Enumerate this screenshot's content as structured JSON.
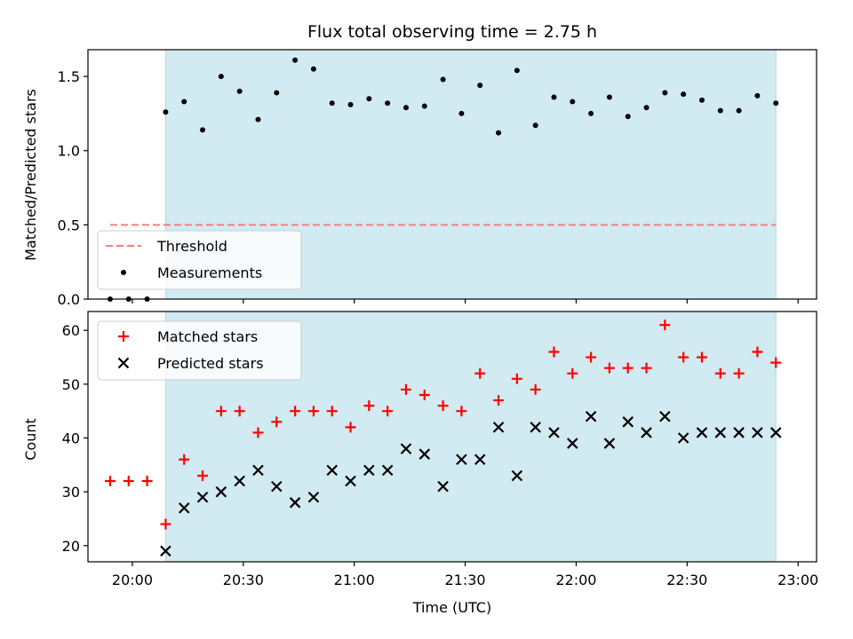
{
  "title": "Flux total observing time = 2.75 h",
  "colors": {
    "shade": "#add8e6",
    "threshold": "#f08080",
    "measurement": "#000000",
    "matched": "#ff0000",
    "predicted": "#000000"
  },
  "chart_data": [
    {
      "type": "scatter",
      "ylabel": "Matched/Predicted stars",
      "xlabel": "",
      "xlim": [
        "19:48",
        "23:05"
      ],
      "ylim": [
        0,
        1.68
      ],
      "yticks": [
        0.0,
        0.5,
        1.0,
        1.5
      ],
      "ytick_labels": [
        "0.0",
        "0.5",
        "1.0",
        "1.5"
      ],
      "shaded_interval": [
        "20:09",
        "22:54"
      ],
      "legend": {
        "placement": "lower-left",
        "entries": [
          "Threshold",
          "Measurements"
        ]
      },
      "threshold": {
        "name": "Threshold",
        "style": "dashed",
        "value": 0.5,
        "x_range": [
          "19:54",
          "22:54"
        ]
      },
      "series": [
        {
          "name": "Measurements",
          "marker": "dot",
          "x": [
            "19:54",
            "19:59",
            "20:04",
            "20:09",
            "20:14",
            "20:19",
            "20:24",
            "20:29",
            "20:34",
            "20:39",
            "20:44",
            "20:49",
            "20:54",
            "20:59",
            "21:04",
            "21:09",
            "21:14",
            "21:19",
            "21:24",
            "21:29",
            "21:34",
            "21:39",
            "21:44",
            "21:49",
            "21:54",
            "21:59",
            "22:04",
            "22:09",
            "22:14",
            "22:19",
            "22:24",
            "22:29",
            "22:34",
            "22:39",
            "22:44",
            "22:49",
            "22:54"
          ],
          "y": [
            0.0,
            0.0,
            0.0,
            1.26,
            1.33,
            1.14,
            1.5,
            1.4,
            1.21,
            1.39,
            1.61,
            1.55,
            1.32,
            1.31,
            1.35,
            1.32,
            1.29,
            1.3,
            1.48,
            1.25,
            1.44,
            1.12,
            1.54,
            1.17,
            1.36,
            1.33,
            1.25,
            1.36,
            1.23,
            1.29,
            1.39,
            1.38,
            1.34,
            1.27,
            1.27,
            1.37,
            1.32
          ]
        }
      ]
    },
    {
      "type": "scatter",
      "ylabel": "Count",
      "xlabel": "Time (UTC)",
      "xlim": [
        "19:48",
        "23:05"
      ],
      "ylim": [
        17,
        63.5
      ],
      "xticks": [
        "20:00",
        "20:30",
        "21:00",
        "21:30",
        "22:00",
        "22:30",
        "23:00"
      ],
      "yticks": [
        20,
        30,
        40,
        50,
        60
      ],
      "ytick_labels": [
        "20",
        "30",
        "40",
        "50",
        "60"
      ],
      "shaded_interval": [
        "20:09",
        "22:54"
      ],
      "legend": {
        "placement": "upper-left",
        "entries": [
          "Matched stars",
          "Predicted stars"
        ]
      },
      "series": [
        {
          "name": "Matched stars",
          "marker": "plus",
          "x": [
            "19:54",
            "19:59",
            "20:04",
            "20:09",
            "20:14",
            "20:19",
            "20:24",
            "20:29",
            "20:34",
            "20:39",
            "20:44",
            "20:49",
            "20:54",
            "20:59",
            "21:04",
            "21:09",
            "21:14",
            "21:19",
            "21:24",
            "21:29",
            "21:34",
            "21:39",
            "21:44",
            "21:49",
            "21:54",
            "21:59",
            "22:04",
            "22:09",
            "22:14",
            "22:19",
            "22:24",
            "22:29",
            "22:34",
            "22:39",
            "22:44",
            "22:49",
            "22:54"
          ],
          "y": [
            32,
            32,
            32,
            24,
            36,
            33,
            45,
            45,
            41,
            43,
            45,
            45,
            45,
            42,
            46,
            45,
            49,
            48,
            46,
            45,
            52,
            47,
            51,
            49,
            56,
            52,
            55,
            53,
            53,
            53,
            61,
            55,
            55,
            52,
            52,
            56,
            54
          ]
        },
        {
          "name": "Predicted stars",
          "marker": "x",
          "x": [
            "20:09",
            "20:14",
            "20:19",
            "20:24",
            "20:29",
            "20:34",
            "20:39",
            "20:44",
            "20:49",
            "20:54",
            "20:59",
            "21:04",
            "21:09",
            "21:14",
            "21:19",
            "21:24",
            "21:29",
            "21:34",
            "21:39",
            "21:44",
            "21:49",
            "21:54",
            "21:59",
            "22:04",
            "22:09",
            "22:14",
            "22:19",
            "22:24",
            "22:29",
            "22:34",
            "22:39",
            "22:44",
            "22:49",
            "22:54"
          ],
          "y": [
            19,
            27,
            29,
            30,
            32,
            34,
            31,
            28,
            29,
            34,
            32,
            34,
            34,
            38,
            37,
            31,
            36,
            36,
            42,
            33,
            42,
            41,
            39,
            44,
            39,
            43,
            41,
            44,
            40,
            41,
            41,
            41,
            41,
            41
          ]
        }
      ]
    }
  ]
}
